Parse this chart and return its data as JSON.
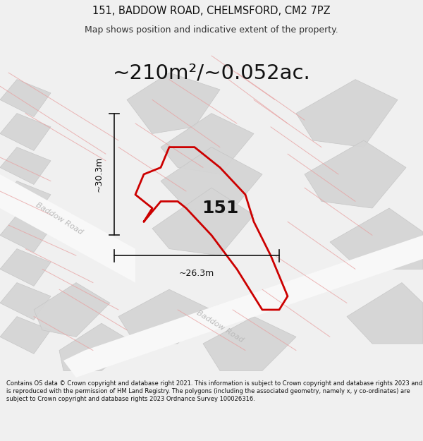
{
  "title": "151, BADDOW ROAD, CHELMSFORD, CM2 7PZ",
  "subtitle": "Map shows position and indicative extent of the property.",
  "area_text": "~210m²/~0.052ac.",
  "dim_width": "~26.3m",
  "dim_height": "~30.3m",
  "property_label": "151",
  "footer": "Contains OS data © Crown copyright and database right 2021. This information is subject to Crown copyright and database rights 2023 and is reproduced with the permission of HM Land Registry. The polygons (including the associated geometry, namely x, y co-ordinates) are subject to Crown copyright and database rights 2023 Ordnance Survey 100026316.",
  "bg_color": "#f0f0f0",
  "map_bg": "#ffffff",
  "property_color": "#cc0000",
  "property_linewidth": 2.0,
  "road_color": "#d8d8d8",
  "pink_line_color": "#e8a0a0",
  "road_label_color": "#bbbbbb",
  "building_color": "#d5d5d5",
  "building_edge_color": "#c5c5c5"
}
